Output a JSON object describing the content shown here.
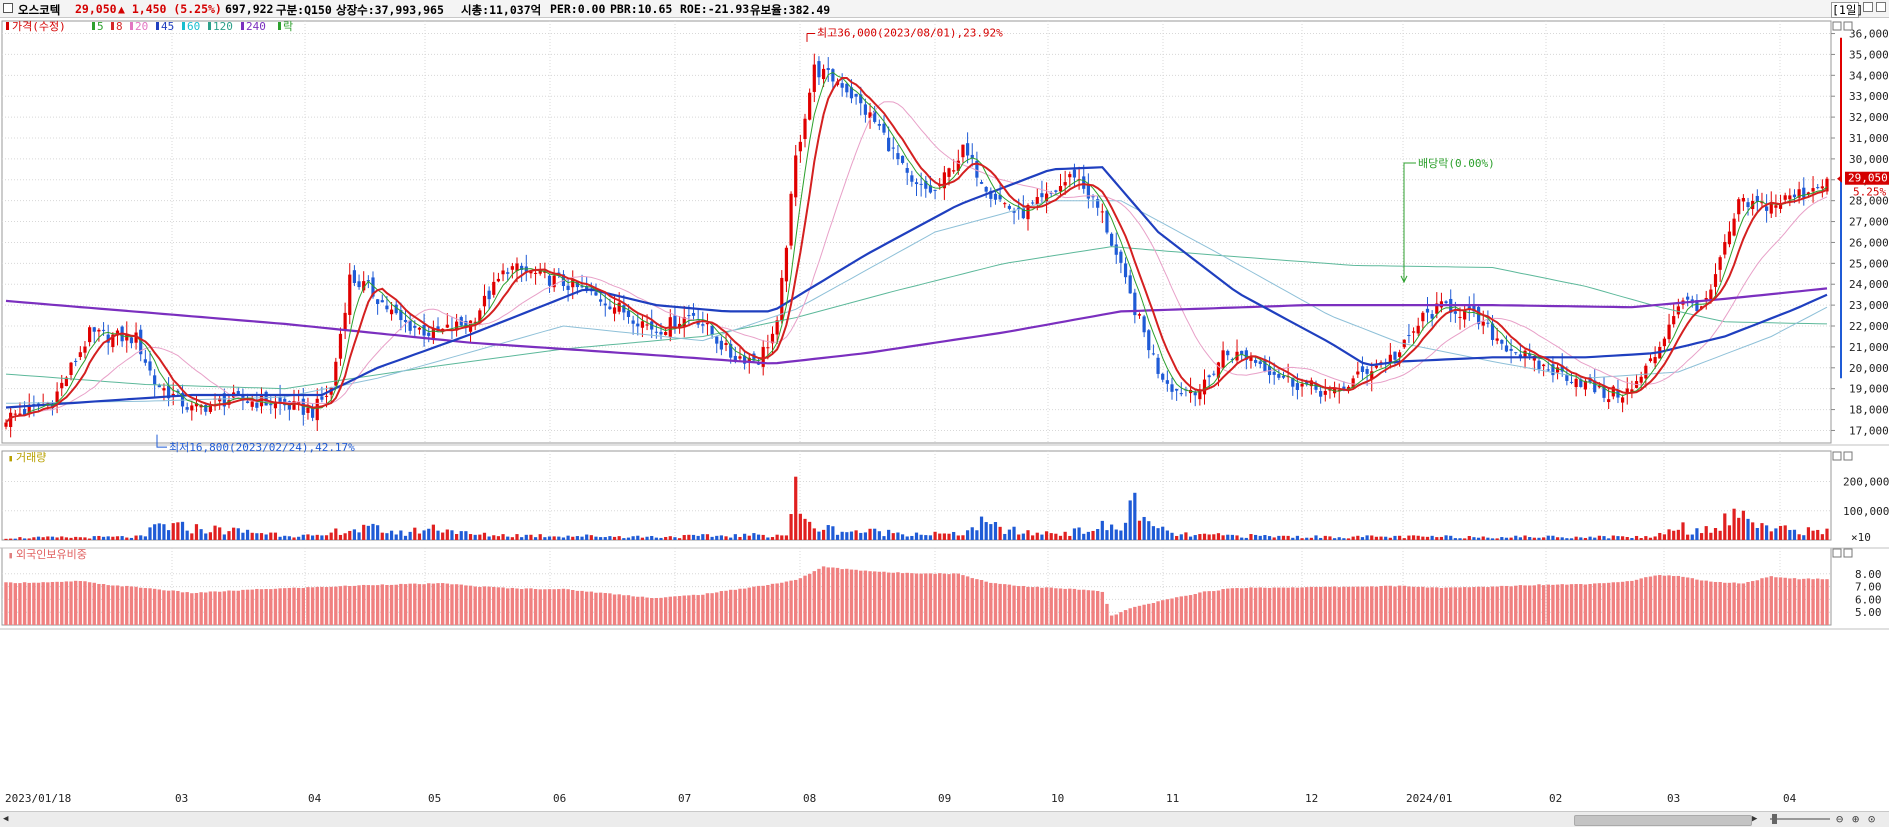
{
  "header": {
    "stock_name": "오스코텍",
    "price": "29,050",
    "change": "▲ 1,450 (5.25%)",
    "volume": "697,922",
    "category": "구분:Q150",
    "shares": "상장수:37,993,965",
    "market_cap": "시총:11,037억",
    "per": "PER:0.00",
    "pbr": "PBR:10.65",
    "roe": "ROE:-21.93",
    "retention": "유보율:382.49",
    "period_button": "[1일]"
  },
  "legend": {
    "price_label": "가격(수정)",
    "ma": [
      {
        "label": "5",
        "color": "#2ca02c"
      },
      {
        "label": "8",
        "color": "#d62728"
      },
      {
        "label": "20",
        "color": "#e377c2"
      },
      {
        "label": "45",
        "color": "#1f3fbf"
      },
      {
        "label": "60",
        "color": "#17becf"
      },
      {
        "label": "120",
        "color": "#2ca08a"
      },
      {
        "label": "240",
        "color": "#7b2fbf"
      }
    ],
    "ex_div_label": "락"
  },
  "annotations": {
    "high": "최고36,000(2023/08/01),23.92%",
    "low": "최저16,800(2023/02/24),42.17%",
    "dividend": "배당락(0.00%)"
  },
  "current_price_tag": {
    "price": "29,050",
    "pct": "5.25%"
  },
  "volume_panel": {
    "title": "거래량",
    "ticks": [
      "200,000",
      "100,000"
    ],
    "multiplier": "×10"
  },
  "foreign_panel": {
    "title": "외국인보유비중",
    "ticks": [
      "8.00",
      "7.00",
      "6.00",
      "5.00"
    ]
  },
  "x_axis": {
    "labels": [
      "2023/01/18",
      "03",
      "04",
      "05",
      "06",
      "07",
      "08",
      "09",
      "10",
      "11",
      "12",
      "2024/01",
      "02",
      "03",
      "04"
    ]
  },
  "colors": {
    "up": "#e00000",
    "down": "#1f5bd6",
    "vol_up": "#e02020",
    "vol_down": "#1f5bd6",
    "foreign": "#f08080",
    "grid": "#d8d8d8"
  },
  "chart_data": {
    "type": "candlestick",
    "price_ticks": [
      17000,
      18000,
      19000,
      20000,
      21000,
      22000,
      23000,
      24000,
      25000,
      26000,
      27000,
      28000,
      29000,
      30000,
      31000,
      32000,
      33000,
      34000,
      35000,
      36000
    ],
    "ylim": [
      16400,
      36600
    ],
    "close_keypoints": [
      [
        0,
        17600
      ],
      [
        10,
        18400
      ],
      [
        18,
        21600
      ],
      [
        28,
        21400
      ],
      [
        32,
        19300
      ],
      [
        40,
        18000
      ],
      [
        48,
        18500
      ],
      [
        58,
        18300
      ],
      [
        66,
        17900
      ],
      [
        70,
        19000
      ],
      [
        74,
        24300
      ],
      [
        78,
        23800
      ],
      [
        85,
        22200
      ],
      [
        92,
        21600
      ],
      [
        100,
        22200
      ],
      [
        108,
        24800
      ],
      [
        115,
        24400
      ],
      [
        122,
        23900
      ],
      [
        130,
        23100
      ],
      [
        140,
        21800
      ],
      [
        148,
        22600
      ],
      [
        156,
        20600
      ],
      [
        162,
        20400
      ],
      [
        166,
        22000
      ],
      [
        170,
        30000
      ],
      [
        174,
        34300
      ],
      [
        180,
        33600
      ],
      [
        188,
        31500
      ],
      [
        195,
        28700
      ],
      [
        200,
        28400
      ],
      [
        206,
        30400
      ],
      [
        212,
        28400
      ],
      [
        218,
        27300
      ],
      [
        224,
        28100
      ],
      [
        230,
        29300
      ],
      [
        236,
        27300
      ],
      [
        242,
        23400
      ],
      [
        248,
        19900
      ],
      [
        252,
        18900
      ],
      [
        258,
        19100
      ],
      [
        262,
        20700
      ],
      [
        268,
        20500
      ],
      [
        276,
        19400
      ],
      [
        286,
        18700
      ],
      [
        293,
        19900
      ],
      [
        300,
        20700
      ],
      [
        305,
        22400
      ],
      [
        310,
        23000
      ],
      [
        316,
        22400
      ],
      [
        322,
        21200
      ],
      [
        330,
        20100
      ],
      [
        338,
        19500
      ],
      [
        344,
        18700
      ],
      [
        350,
        18900
      ],
      [
        355,
        20600
      ],
      [
        360,
        23100
      ],
      [
        366,
        23000
      ],
      [
        373,
        27800
      ],
      [
        380,
        27800
      ],
      [
        387,
        28400
      ],
      [
        392,
        29050
      ]
    ],
    "volume_keypoints": [
      [
        0,
        8000
      ],
      [
        30,
        12000
      ],
      [
        32,
        55000
      ],
      [
        68,
        12000
      ],
      [
        72,
        38000
      ],
      [
        76,
        40000
      ],
      [
        80,
        42000
      ],
      [
        85,
        25000
      ],
      [
        93,
        50000
      ],
      [
        100,
        20000
      ],
      [
        140,
        12000
      ],
      [
        168,
        20000
      ],
      [
        170,
        180000
      ],
      [
        172,
        60000
      ],
      [
        176,
        45000
      ],
      [
        180,
        35000
      ],
      [
        205,
        20000
      ],
      [
        210,
        60000
      ],
      [
        215,
        40000
      ],
      [
        220,
        25000
      ],
      [
        230,
        30000
      ],
      [
        236,
        50000
      ],
      [
        240,
        40000
      ],
      [
        243,
        160000
      ],
      [
        246,
        50000
      ],
      [
        252,
        20000
      ],
      [
        280,
        12000
      ],
      [
        330,
        12000
      ],
      [
        355,
        12000
      ],
      [
        358,
        40000
      ],
      [
        360,
        60000
      ],
      [
        363,
        30000
      ],
      [
        370,
        70000
      ],
      [
        373,
        100000
      ],
      [
        376,
        80000
      ],
      [
        380,
        40000
      ],
      [
        392,
        32000
      ]
    ],
    "foreign_keypoints": [
      [
        0,
        7.3
      ],
      [
        12,
        7.35
      ],
      [
        16,
        7.45
      ],
      [
        20,
        7.2
      ],
      [
        30,
        6.9
      ],
      [
        40,
        6.5
      ],
      [
        55,
        6.8
      ],
      [
        70,
        7.0
      ],
      [
        80,
        7.15
      ],
      [
        95,
        7.25
      ],
      [
        100,
        7.05
      ],
      [
        110,
        6.85
      ],
      [
        120,
        6.8
      ],
      [
        140,
        6.1
      ],
      [
        150,
        6.4
      ],
      [
        165,
        7.2
      ],
      [
        170,
        7.5
      ],
      [
        176,
        8.55
      ],
      [
        180,
        8.4
      ],
      [
        190,
        8.1
      ],
      [
        205,
        8.0
      ],
      [
        212,
        7.3
      ],
      [
        220,
        7.0
      ],
      [
        232,
        6.75
      ],
      [
        236,
        6.6
      ],
      [
        238,
        4.7
      ],
      [
        242,
        5.3
      ],
      [
        250,
        6.0
      ],
      [
        258,
        6.6
      ],
      [
        265,
        6.9
      ],
      [
        280,
        6.95
      ],
      [
        300,
        7.05
      ],
      [
        310,
        6.9
      ],
      [
        320,
        7.0
      ],
      [
        330,
        7.15
      ],
      [
        340,
        7.2
      ],
      [
        350,
        7.45
      ],
      [
        355,
        7.9
      ],
      [
        360,
        7.8
      ],
      [
        368,
        7.35
      ],
      [
        374,
        7.25
      ],
      [
        380,
        7.8
      ],
      [
        386,
        7.6
      ],
      [
        392,
        7.6
      ]
    ],
    "foreign_ylim": [
      4.0,
      9.0
    ],
    "ma240_keypoints": [
      [
        0,
        23200
      ],
      [
        60,
        22100
      ],
      [
        100,
        21200
      ],
      [
        140,
        20600
      ],
      [
        165,
        20200
      ],
      [
        185,
        20700
      ],
      [
        215,
        21700
      ],
      [
        240,
        22700
      ],
      [
        280,
        23000
      ],
      [
        320,
        23000
      ],
      [
        350,
        22900
      ],
      [
        370,
        23300
      ],
      [
        392,
        23800
      ]
    ],
    "ma45_keypoints": [
      [
        0,
        18100
      ],
      [
        40,
        18700
      ],
      [
        68,
        18700
      ],
      [
        80,
        20000
      ],
      [
        100,
        21600
      ],
      [
        125,
        23800
      ],
      [
        140,
        23000
      ],
      [
        155,
        22700
      ],
      [
        165,
        22700
      ],
      [
        185,
        25400
      ],
      [
        205,
        27800
      ],
      [
        225,
        29500
      ],
      [
        236,
        29600
      ],
      [
        248,
        26500
      ],
      [
        265,
        23600
      ],
      [
        285,
        21200
      ],
      [
        293,
        20100
      ],
      [
        300,
        20300
      ],
      [
        320,
        20500
      ],
      [
        340,
        20500
      ],
      [
        355,
        20700
      ],
      [
        370,
        21500
      ],
      [
        385,
        22800
      ],
      [
        392,
        23500
      ]
    ],
    "ma120_keypoints": [
      [
        0,
        19700
      ],
      [
        30,
        19200
      ],
      [
        60,
        19000
      ],
      [
        90,
        20000
      ],
      [
        120,
        20900
      ],
      [
        150,
        21500
      ],
      [
        170,
        22400
      ],
      [
        190,
        23600
      ],
      [
        215,
        25000
      ],
      [
        238,
        25800
      ],
      [
        260,
        25400
      ],
      [
        290,
        24900
      ],
      [
        320,
        24800
      ],
      [
        340,
        23900
      ],
      [
        356,
        22900
      ],
      [
        370,
        22200
      ],
      [
        392,
        22100
      ]
    ],
    "ma60_keypoints": [
      [
        0,
        18300
      ],
      [
        30,
        18400
      ],
      [
        60,
        18600
      ],
      [
        80,
        19500
      ],
      [
        120,
        22000
      ],
      [
        150,
        21300
      ],
      [
        170,
        22800
      ],
      [
        200,
        26500
      ],
      [
        225,
        28000
      ],
      [
        240,
        28000
      ],
      [
        260,
        25600
      ],
      [
        285,
        22500
      ],
      [
        300,
        21200
      ],
      [
        320,
        20300
      ],
      [
        340,
        19500
      ],
      [
        360,
        19800
      ],
      [
        380,
        21500
      ],
      [
        392,
        22900
      ]
    ]
  }
}
